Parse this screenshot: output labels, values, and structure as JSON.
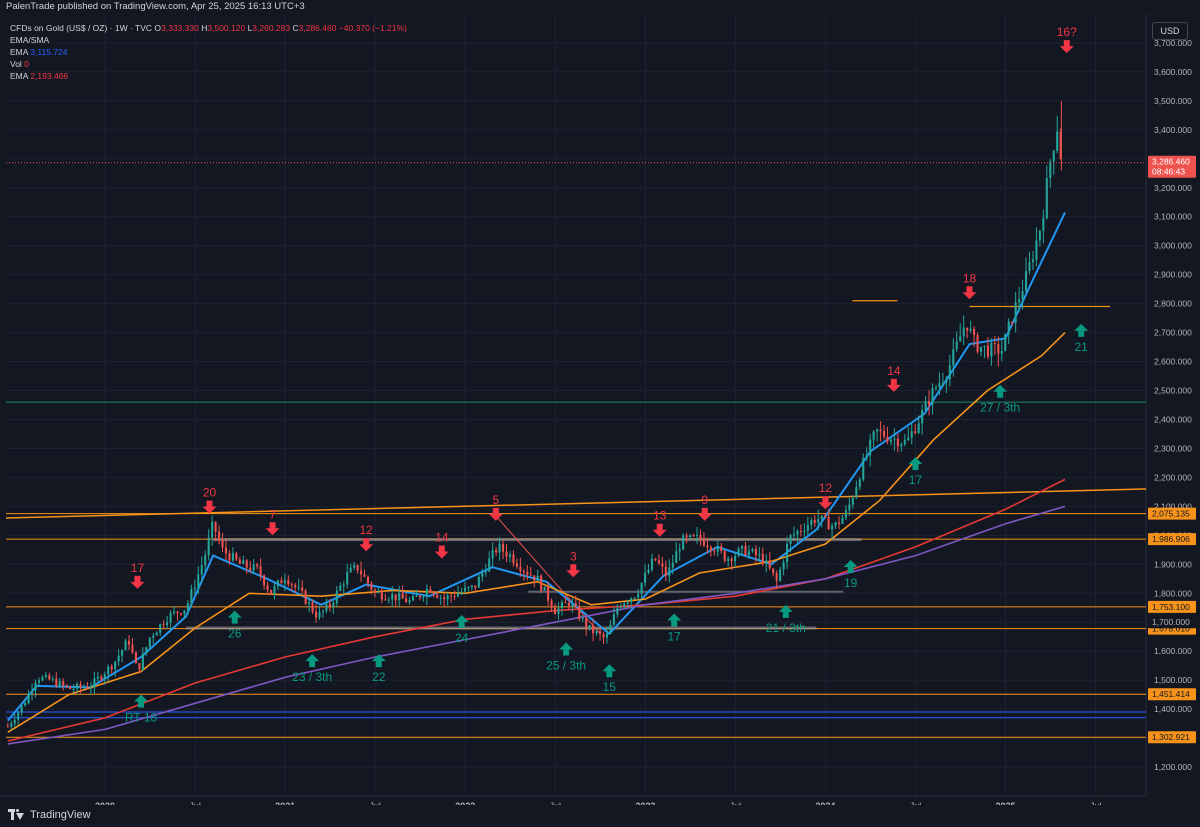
{
  "header": {
    "publisher_line": "PalenTrade published on TradingView.com, Apr 25, 2025 16:13 UTC+3"
  },
  "legend": {
    "symbol": "CFDs on Gold (US$ / OZ) · 1W · TVC",
    "o_label": "O",
    "o_value": "3,333.330",
    "h_label": "H",
    "h_value": "3,500.120",
    "l_label": "L",
    "l_value": "3,260.283",
    "c_label": "C",
    "c_value": "3,286.460",
    "change": "−40.370 (−1.21%)",
    "row2": "EMA/SMA",
    "row3_label": "EMA",
    "row3_value": "3,115.724",
    "row4_label": "Vol",
    "row4_value": "0",
    "row5_label": "EMA",
    "row5_value": "2,193.466"
  },
  "currency_button": "USD",
  "footer": {
    "brand": "TradingView"
  },
  "colors": {
    "bg": "#131722",
    "up": "#26a69a",
    "down": "#ef5350",
    "grid": "#1e2230",
    "ema_fast": "#2196f3",
    "ema_mid": "#f7931a",
    "ema_red": "#e53935",
    "ema_purple": "#7e57c2",
    "level": "#f7931a",
    "support_green": "#1b8a6b",
    "arrow_red": "#f23645",
    "arrow_green": "#089981"
  },
  "chart_data": {
    "type": "candlestick",
    "symbol": "CFDs on Gold (US$ / OZ)",
    "timeframe": "1W",
    "y_range": [
      1100,
      3800
    ],
    "y_ticks": [
      1200,
      1300,
      1400,
      1500,
      1600,
      1700,
      1800,
      1900,
      2000,
      2100,
      2200,
      2300,
      2400,
      2500,
      2600,
      2700,
      2800,
      2900,
      3000,
      3100,
      3200,
      3300,
      3400,
      3500,
      3600,
      3700
    ],
    "y_tick_labels": [
      "1,200.000",
      "1,300.000",
      "1,400.000",
      "1,500.000",
      "1,600.000",
      "1,700.000",
      "1,800.000",
      "1,900.000",
      "2,000.000",
      "2,100.000",
      "2,200.000",
      "2,300.000",
      "2,400.000",
      "2,500.000",
      "2,600.000",
      "2,700.000",
      "2,800.000",
      "2,900.000",
      "3,000.000",
      "3,100.000",
      "3,200.000",
      "3,300.000",
      "3,400.000",
      "3,500.000",
      "3,600.000",
      "3,700.000"
    ],
    "x_range": [
      2019.45,
      2025.78
    ],
    "x_ticks": [
      {
        "t": 2020.0,
        "label": "2020"
      },
      {
        "t": 2020.5,
        "label": "Jul"
      },
      {
        "t": 2021.0,
        "label": "2021"
      },
      {
        "t": 2021.5,
        "label": "Jul"
      },
      {
        "t": 2022.0,
        "label": "2022"
      },
      {
        "t": 2022.5,
        "label": "Jul"
      },
      {
        "t": 2023.0,
        "label": "2023"
      },
      {
        "t": 2023.5,
        "label": "Jul"
      },
      {
        "t": 2024.0,
        "label": "2024"
      },
      {
        "t": 2024.5,
        "label": "Jul"
      },
      {
        "t": 2025.0,
        "label": "2025"
      },
      {
        "t": 2025.5,
        "label": "Jul"
      }
    ],
    "price_path": [
      [
        2019.46,
        1340
      ],
      [
        2019.55,
        1420
      ],
      [
        2019.62,
        1510
      ],
      [
        2019.7,
        1500
      ],
      [
        2019.8,
        1470
      ],
      [
        2019.92,
        1480
      ],
      [
        2020.05,
        1560
      ],
      [
        2020.13,
        1640
      ],
      [
        2020.18,
        1530
      ],
      [
        2020.25,
        1650
      ],
      [
        2020.35,
        1720
      ],
      [
        2020.45,
        1750
      ],
      [
        2020.55,
        1920
      ],
      [
        2020.6,
        2040
      ],
      [
        2020.65,
        1950
      ],
      [
        2020.75,
        1900
      ],
      [
        2020.85,
        1880
      ],
      [
        2020.92,
        1800
      ],
      [
        2021.0,
        1860
      ],
      [
        2021.1,
        1790
      ],
      [
        2021.18,
        1720
      ],
      [
        2021.25,
        1760
      ],
      [
        2021.35,
        1870
      ],
      [
        2021.4,
        1890
      ],
      [
        2021.5,
        1800
      ],
      [
        2021.6,
        1790
      ],
      [
        2021.7,
        1770
      ],
      [
        2021.8,
        1820
      ],
      [
        2021.88,
        1780
      ],
      [
        2021.95,
        1800
      ],
      [
        2022.05,
        1820
      ],
      [
        2022.12,
        1900
      ],
      [
        2022.18,
        1960
      ],
      [
        2022.25,
        1930
      ],
      [
        2022.33,
        1880
      ],
      [
        2022.4,
        1850
      ],
      [
        2022.5,
        1740
      ],
      [
        2022.58,
        1770
      ],
      [
        2022.68,
        1680
      ],
      [
        2022.78,
        1640
      ],
      [
        2022.85,
        1760
      ],
      [
        2022.95,
        1800
      ],
      [
        2023.05,
        1920
      ],
      [
        2023.12,
        1860
      ],
      [
        2023.2,
        1980
      ],
      [
        2023.3,
        1990
      ],
      [
        2023.38,
        1960
      ],
      [
        2023.45,
        1920
      ],
      [
        2023.55,
        1950
      ],
      [
        2023.65,
        1920
      ],
      [
        2023.73,
        1840
      ],
      [
        2023.8,
        1990
      ],
      [
        2023.88,
        2030
      ],
      [
        2023.95,
        2060
      ],
      [
        2024.05,
        2030
      ],
      [
        2024.12,
        2080
      ],
      [
        2024.2,
        2230
      ],
      [
        2024.28,
        2360
      ],
      [
        2024.35,
        2340
      ],
      [
        2024.45,
        2320
      ],
      [
        2024.52,
        2400
      ],
      [
        2024.6,
        2500
      ],
      [
        2024.68,
        2570
      ],
      [
        2024.78,
        2740
      ],
      [
        2024.83,
        2660
      ],
      [
        2024.9,
        2640
      ],
      [
        2024.98,
        2640
      ],
      [
        2025.05,
        2780
      ],
      [
        2025.12,
        2900
      ],
      [
        2025.2,
        3080
      ],
      [
        2025.25,
        3300
      ],
      [
        2025.29,
        3420
      ],
      [
        2025.31,
        3286
      ]
    ],
    "last_price": 3286.46,
    "last_price_label": "3,286.460",
    "countdown": "08:46:43",
    "series": [
      {
        "name": "EMA",
        "color": "#2196f3",
        "values": [
          [
            2019.46,
            1360
          ],
          [
            2019.62,
            1480
          ],
          [
            2019.92,
            1475
          ],
          [
            2020.2,
            1580
          ],
          [
            2020.45,
            1720
          ],
          [
            2020.6,
            1930
          ],
          [
            2020.9,
            1850
          ],
          [
            2021.2,
            1760
          ],
          [
            2021.45,
            1830
          ],
          [
            2021.8,
            1790
          ],
          [
            2022.15,
            1890
          ],
          [
            2022.45,
            1840
          ],
          [
            2022.8,
            1660
          ],
          [
            2023.1,
            1860
          ],
          [
            2023.4,
            1960
          ],
          [
            2023.7,
            1900
          ],
          [
            2023.95,
            2020
          ],
          [
            2024.25,
            2290
          ],
          [
            2024.55,
            2420
          ],
          [
            2024.8,
            2660
          ],
          [
            2025.0,
            2680
          ],
          [
            2025.15,
            2880
          ],
          [
            2025.33,
            3115
          ]
        ]
      },
      {
        "name": "",
        "color": "#f7931a",
        "values": [
          [
            2019.46,
            1320
          ],
          [
            2019.8,
            1450
          ],
          [
            2020.2,
            1530
          ],
          [
            2020.5,
            1680
          ],
          [
            2020.8,
            1800
          ],
          [
            2021.2,
            1790
          ],
          [
            2021.6,
            1810
          ],
          [
            2022.0,
            1800
          ],
          [
            2022.4,
            1840
          ],
          [
            2022.7,
            1760
          ],
          [
            2023.0,
            1780
          ],
          [
            2023.3,
            1870
          ],
          [
            2023.7,
            1910
          ],
          [
            2024.0,
            1970
          ],
          [
            2024.3,
            2120
          ],
          [
            2024.6,
            2330
          ],
          [
            2024.9,
            2500
          ],
          [
            2025.2,
            2620
          ],
          [
            2025.33,
            2700
          ]
        ]
      },
      {
        "name": "",
        "color": "#e53935",
        "values": [
          [
            2019.46,
            1290
          ],
          [
            2020.0,
            1370
          ],
          [
            2020.5,
            1490
          ],
          [
            2021.0,
            1580
          ],
          [
            2021.5,
            1650
          ],
          [
            2022.0,
            1710
          ],
          [
            2022.5,
            1740
          ],
          [
            2023.0,
            1760
          ],
          [
            2023.5,
            1790
          ],
          [
            2024.0,
            1850
          ],
          [
            2024.5,
            1960
          ],
          [
            2025.0,
            2090
          ],
          [
            2025.33,
            2193
          ]
        ]
      },
      {
        "name": "",
        "color": "#7e57c2",
        "values": [
          [
            2019.46,
            1280
          ],
          [
            2020.0,
            1330
          ],
          [
            2020.5,
            1420
          ],
          [
            2021.0,
            1510
          ],
          [
            2021.5,
            1580
          ],
          [
            2022.0,
            1640
          ],
          [
            2022.5,
            1700
          ],
          [
            2023.0,
            1760
          ],
          [
            2023.5,
            1800
          ],
          [
            2024.0,
            1850
          ],
          [
            2024.5,
            1930
          ],
          [
            2025.0,
            2040
          ],
          [
            2025.33,
            2100
          ]
        ]
      }
    ],
    "levels": [
      {
        "price": 2075.135,
        "label": "2,075.135"
      },
      {
        "price": 1986.906,
        "label": "1,986.906"
      },
      {
        "price": 1753.1,
        "label": "1,753.100"
      },
      {
        "price": 1678.01,
        "label": "1,678.010"
      },
      {
        "price": 1451.414,
        "label": "1,451.414"
      },
      {
        "price": 1302.921,
        "label": "1,302.921"
      }
    ],
    "level_1700_label": "1,700.000",
    "green_level": 2460,
    "annotations_red": [
      {
        "t": 2020.18,
        "p": 1860,
        "label": "17"
      },
      {
        "t": 2020.58,
        "p": 2120,
        "label": "20"
      },
      {
        "t": 2020.93,
        "p": 2045,
        "label": "7"
      },
      {
        "t": 2021.45,
        "p": 1990,
        "label": "12"
      },
      {
        "t": 2021.87,
        "p": 1965,
        "label": "14"
      },
      {
        "t": 2022.17,
        "p": 2095,
        "label": "5"
      },
      {
        "t": 2022.6,
        "p": 1900,
        "label": "3"
      },
      {
        "t": 2023.08,
        "p": 2040,
        "label": "13"
      },
      {
        "t": 2023.33,
        "p": 2095,
        "label": "9"
      },
      {
        "t": 2024.0,
        "p": 2135,
        "label": "12"
      },
      {
        "t": 2024.38,
        "p": 2540,
        "label": "14"
      },
      {
        "t": 2024.8,
        "p": 2860,
        "label": "18"
      },
      {
        "t": 2025.34,
        "p": 3710,
        "label": "16?"
      }
    ],
    "annotations_green": [
      {
        "t": 2020.2,
        "p": 1450,
        "label": "RT 18"
      },
      {
        "t": 2020.72,
        "p": 1740,
        "label": "26"
      },
      {
        "t": 2021.15,
        "p": 1590,
        "label": "23 / 3th"
      },
      {
        "t": 2021.52,
        "p": 1590,
        "label": "22"
      },
      {
        "t": 2021.98,
        "p": 1725,
        "label": "24"
      },
      {
        "t": 2022.56,
        "p": 1630,
        "label": "25 / 3th"
      },
      {
        "t": 2022.8,
        "p": 1555,
        "label": "15"
      },
      {
        "t": 2023.16,
        "p": 1730,
        "label": "17"
      },
      {
        "t": 2023.78,
        "p": 1760,
        "label": "21 / 3th"
      },
      {
        "t": 2024.14,
        "p": 1915,
        "label": "19"
      },
      {
        "t": 2024.5,
        "p": 2270,
        "label": "17"
      },
      {
        "t": 2024.97,
        "p": 2520,
        "label": "27 / 3th"
      },
      {
        "t": 2025.42,
        "p": 2730,
        "label": "21"
      }
    ]
  }
}
